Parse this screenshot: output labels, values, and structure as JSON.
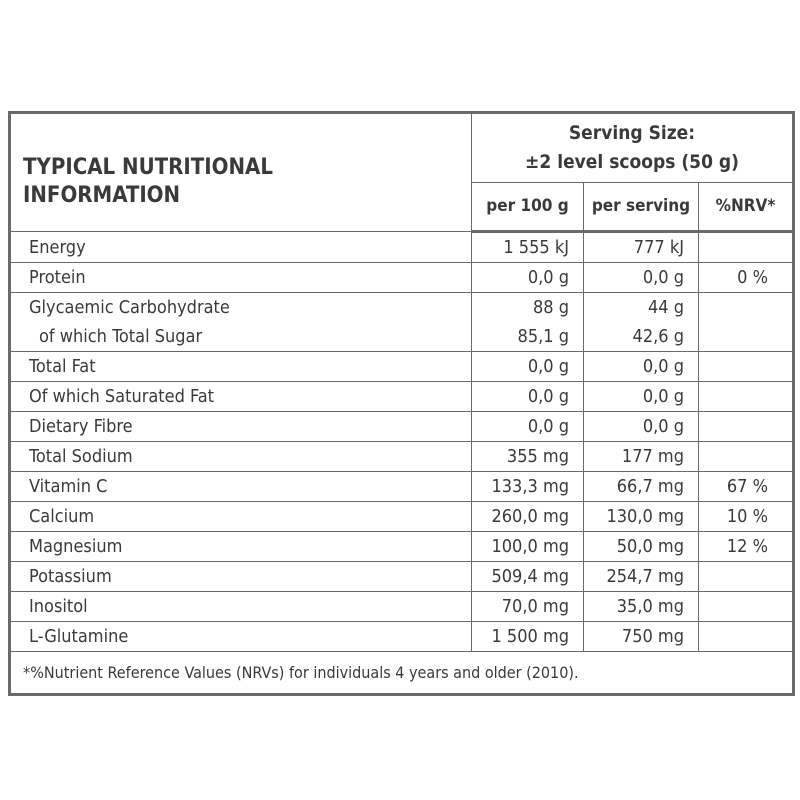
{
  "table": {
    "title": "TYPICAL NUTRITIONAL INFORMATION",
    "serving_size": [
      "Serving Size:",
      "±2 level scoops (50 g)"
    ],
    "columns": [
      "per 100 g",
      "per serving",
      "%NRV*"
    ],
    "rows": [
      {
        "name": "Energy",
        "per_100g": "1 555 kJ",
        "per_serving": "777 kJ"
      },
      {
        "name": "Protein",
        "per_100g": "0,0 g",
        "per_serving": "0,0 g",
        "nrv": "0 %"
      },
      {
        "name": "Glycaemic Carbohydrate",
        "per_100g": "88 g",
        "per_serving": "44 g",
        "sub": {
          "name": "of which Total Sugar",
          "per_100g": "85,1 g",
          "per_serving": "42,6 g"
        }
      },
      {
        "name": "Total Fat",
        "per_100g": "0,0 g",
        "per_serving": "0,0 g"
      },
      {
        "name": "Of which Saturated Fat",
        "per_100g": "0,0 g",
        "per_serving": "0,0 g"
      },
      {
        "name": "Dietary Fibre",
        "per_100g": "0,0 g",
        "per_serving": "0,0 g"
      },
      {
        "name": "Total Sodium",
        "per_100g": "355 mg",
        "per_serving": "177 mg"
      },
      {
        "name": "Vitamin C",
        "per_100g": "133,3 mg",
        "per_serving": "66,7 mg",
        "nrv": "67 %"
      },
      {
        "name": "Calcium",
        "per_100g": "260,0 mg",
        "per_serving": "130,0 mg",
        "nrv": "10 %"
      },
      {
        "name": "Magnesium",
        "per_100g": "100,0 mg",
        "per_serving": "50,0 mg",
        "nrv": "12 %"
      },
      {
        "name": "Potassium",
        "per_100g": "509,4 mg",
        "per_serving": "254,7 mg"
      },
      {
        "name": "Inositol",
        "per_100g": "70,0 mg",
        "per_serving": "35,0 mg"
      },
      {
        "name": "L-Glutamine",
        "per_100g": "1 500 mg",
        "per_serving": "750 mg"
      }
    ],
    "footnote": "*%Nutrient Reference Values (NRVs) for individuals 4 years and older (2010)."
  }
}
